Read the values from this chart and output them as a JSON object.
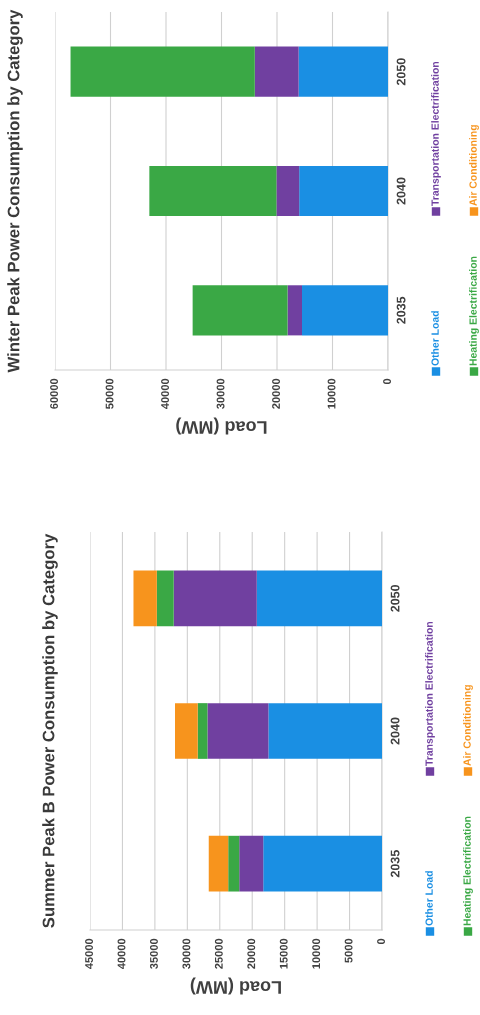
{
  "chart_data": [
    {
      "type": "bar",
      "title": "Winter Peak Power Consumption by Category",
      "xlabel": "Load (MW)",
      "orientation": "horizontal",
      "stacked": true,
      "categories": [
        "2050",
        "2040",
        "2035"
      ],
      "series": [
        {
          "name": "Other Load",
          "color": "#1a8fe3",
          "values": [
            16100,
            16000,
            15500
          ]
        },
        {
          "name": "Transportation Electrification",
          "color": "#7040a0",
          "values": [
            7900,
            4100,
            2600
          ]
        },
        {
          "name": "Heating Electrification",
          "color": "#3aa845",
          "values": [
            33200,
            22900,
            17100
          ]
        },
        {
          "name": "Air Conditioning",
          "color": "#f7941d",
          "values": [
            null,
            null,
            null
          ]
        }
      ],
      "xlim": [
        60000,
        0
      ],
      "xticks": [
        60000,
        50000,
        40000,
        30000,
        20000,
        10000,
        0
      ],
      "grid": "x",
      "legend": "right"
    },
    {
      "type": "bar",
      "title": "Summer Peak B Power Consumption by Category",
      "xlabel": "Load (MW)",
      "orientation": "horizontal",
      "stacked": true,
      "categories": [
        "2050",
        "2040",
        "2035"
      ],
      "series": [
        {
          "name": "Other Load",
          "color": "#1a8fe3",
          "values": [
            19300,
            17500,
            18300
          ]
        },
        {
          "name": "Transportation Electrification",
          "color": "#7040a0",
          "values": [
            12800,
            9400,
            3700
          ]
        },
        {
          "name": "Heating Electrification",
          "color": "#3aa845",
          "values": [
            2600,
            1500,
            1700
          ]
        },
        {
          "name": "Air Conditioning",
          "color": "#f7941d",
          "values": [
            3600,
            3500,
            3000
          ]
        }
      ],
      "xlim": [
        45000,
        0
      ],
      "xticks": [
        45000,
        40000,
        35000,
        30000,
        25000,
        20000,
        15000,
        10000,
        5000,
        0
      ],
      "grid": "x",
      "legend": "right"
    }
  ]
}
